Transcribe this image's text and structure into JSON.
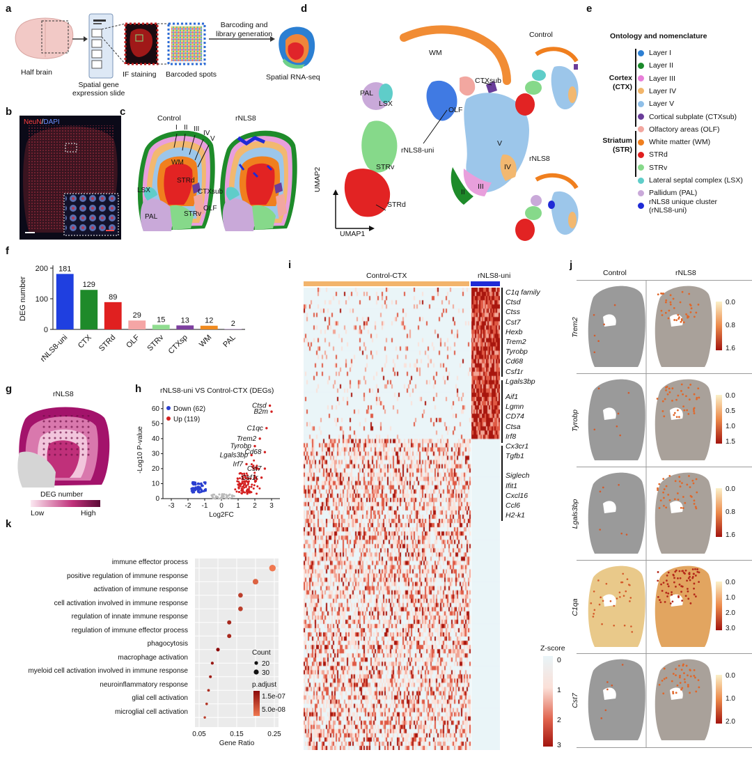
{
  "panels": {
    "a": "a",
    "b": "b",
    "c": "c",
    "d": "d",
    "e": "e",
    "f": "f",
    "g": "g",
    "h": "h",
    "i": "i",
    "j": "j",
    "k": "k"
  },
  "a": {
    "half_brain": "Half brain",
    "slide": "Spatial gene\nexpression slide",
    "if": "IF staining",
    "barcoded": "Barcoded spots",
    "arrow_label": "Barcoding and\nlibrary generation",
    "spatial": "Spatial RNA-seq"
  },
  "b": {
    "stain_red": "NeuN",
    "stain_sep": "/",
    "stain_blue": "DAPI"
  },
  "c": {
    "control": "Control",
    "rnls8": "rNLS8",
    "labels": [
      "I",
      "II",
      "III",
      "IV",
      "V",
      "WM",
      "STRd",
      "LSX",
      "CTXsub",
      "PAL",
      "STRv",
      "OLF"
    ]
  },
  "d": {
    "wm": "WM",
    "pal": "PAL",
    "lsx": "LSX",
    "ctxsub": "CTXsub",
    "olf": "OLF",
    "uni": "rNLS8-uni",
    "strv": "STRv",
    "strd": "STRd",
    "v": "V",
    "iv": "IV",
    "iii": "III",
    "ii": "II",
    "umap1": "UMAP1",
    "umap2": "UMAP2",
    "control": "Control",
    "rnls8": "rNLS8"
  },
  "e": {
    "title": "Ontology and nomenclature",
    "cortex": "Cortex\n(CTX)",
    "striatum": "Striatum\n(STR)",
    "items": [
      {
        "label": "Layer I",
        "color": "#2d7fd3"
      },
      {
        "label": "Layer II",
        "color": "#1a8a2a"
      },
      {
        "label": "Layer III",
        "color": "#e87fd9"
      },
      {
        "label": "Layer IV",
        "color": "#f2b56a"
      },
      {
        "label": "Layer V",
        "color": "#8fbfe8"
      },
      {
        "label": "Cortical subplate (CTXsub)",
        "color": "#6a3d9a"
      },
      {
        "label": "Olfactory areas (OLF)",
        "color": "#f2a7a0"
      },
      {
        "label": "White matter (WM)",
        "color": "#f07f1e"
      },
      {
        "label": "STRd",
        "color": "#e01f1f"
      },
      {
        "label": "STRv",
        "color": "#86d98a"
      },
      {
        "label": "Lateral septal complex (LSX)",
        "color": "#5fcdc9"
      },
      {
        "label": "Pallidum (PAL)",
        "color": "#c9a9d9"
      },
      {
        "label": "rNLS8 unique cluster\n(rNLS8-uni)",
        "color": "#1f2bd6"
      }
    ]
  },
  "chart_data": [
    {
      "type": "bar",
      "ylabel": "DEG number",
      "ylim": [
        0,
        200
      ],
      "yticks": [
        "0",
        "100",
        "200"
      ],
      "categories": [
        "rNLS8-uni",
        "CTX",
        "STRd",
        "OLF",
        "STRv",
        "CTXsp",
        "WM",
        "PAL"
      ],
      "values": [
        181,
        129,
        89,
        29,
        15,
        13,
        12,
        2
      ],
      "colors": [
        "#1f3fe0",
        "#1e8a2a",
        "#e02020",
        "#f5a5a5",
        "#8fdc8f",
        "#7d3f9f",
        "#f08a1e",
        "#c7a8d8"
      ]
    },
    {
      "type": "scatter",
      "title": "rNLS8-uni VS Control-CTX (DEGs)",
      "xlabel": "Log2FC",
      "ylabel": "-Log10 P-value",
      "xlim": [
        -3.5,
        3.5
      ],
      "ylim": [
        0,
        65
      ],
      "xticks": [
        "-3",
        "-2",
        "-1",
        "0",
        "1",
        "2",
        "3"
      ],
      "yticks": [
        "0",
        "10",
        "20",
        "30",
        "40",
        "50",
        "60"
      ],
      "legend": [
        {
          "name": "Down (62)",
          "color": "#2a3fd0"
        },
        {
          "name": "Up (119)",
          "color": "#d42020"
        }
      ],
      "labeled": [
        {
          "name": "Ctsd",
          "x": 2.9,
          "y": 62
        },
        {
          "name": "B2m",
          "x": 3.0,
          "y": 58
        },
        {
          "name": "C1qc",
          "x": 2.7,
          "y": 47
        },
        {
          "name": "Trem2",
          "x": 2.3,
          "y": 40
        },
        {
          "name": "Tyrobp",
          "x": 2.0,
          "y": 35
        },
        {
          "name": "Cd68",
          "x": 2.6,
          "y": 31
        },
        {
          "name": "Lgals3bp",
          "x": 1.8,
          "y": 29
        },
        {
          "name": "Irf7",
          "x": 1.5,
          "y": 23
        },
        {
          "name": "Cst7",
          "x": 2.6,
          "y": 20
        },
        {
          "name": "Csf1r",
          "x": 2.4,
          "y": 14
        }
      ]
    },
    {
      "type": "scatter",
      "subtype": "dotplot",
      "xlabel": "Gene Ratio",
      "xlim": [
        0.05,
        0.25
      ],
      "xticks": [
        "0.05",
        "0.15",
        "0.25"
      ],
      "categories": [
        "immune effector process",
        "positive regulation of immune response",
        "activation of immune response",
        "cell activation involved in immune response",
        "regulation of innate immune response",
        "regulation of immune effector process",
        "phagocytosis",
        "macrophage activation",
        "myeloid cell activation involved in immune response",
        "neuroinflammatory response",
        "glial cell activation",
        "microglial cell activation"
      ],
      "gene_ratio": [
        0.245,
        0.2,
        0.16,
        0.16,
        0.13,
        0.13,
        0.1,
        0.085,
        0.08,
        0.075,
        0.07,
        0.065
      ],
      "count": [
        38,
        32,
        25,
        25,
        22,
        22,
        18,
        14,
        13,
        12,
        11,
        10
      ],
      "p_adjust": [
        5e-09,
        1e-08,
        3e-08,
        3e-08,
        6e-08,
        6e-08,
        1.5e-07,
        1e-07,
        8e-08,
        5e-08,
        4e-08,
        3e-08
      ],
      "size_legend_title": "Count",
      "size_legend": [
        "20",
        "30"
      ],
      "color_legend_title": "p.adjust",
      "color_legend": [
        "1.5e-07",
        "5.0e-08"
      ]
    }
  ],
  "i": {
    "col_control": "Control-CTX",
    "col_uni": "rNLS8-uni",
    "scale_title": "Z-score",
    "scale_ticks": [
      "0",
      "1",
      "2",
      "3"
    ],
    "genes": [
      "C1q family",
      "Ctsd",
      "Ctss",
      "Cst7",
      "Hexb",
      "Trem2",
      "Tyrobp",
      "Cd68",
      "Csf1r",
      "Lgals3bp",
      "Aif1",
      "Lgmn",
      "CD74",
      "Ctsa",
      "Irf8",
      "Cx3cr1",
      "Tgfb1",
      "Siglech",
      "Ifit1",
      "Cxcl16",
      "Ccl6",
      "H2-k1"
    ]
  },
  "j": {
    "control": "Control",
    "rnls8": "rNLS8",
    "rows": [
      {
        "gene": "Trem2",
        "ticks": [
          "0.0",
          "0.8",
          "1.6"
        ]
      },
      {
        "gene": "Tyrobp",
        "ticks": [
          "0.0",
          "0.5",
          "1.0",
          "1.5"
        ]
      },
      {
        "gene": "Lgals3bp",
        "ticks": [
          "0.0",
          "0.8",
          "1.6"
        ]
      },
      {
        "gene": "C1qa",
        "ticks": [
          "0.0",
          "1.0",
          "2.0",
          "3.0"
        ]
      },
      {
        "gene": "Cst7",
        "ticks": [
          "0.0",
          "1.0",
          "2.0"
        ]
      }
    ]
  },
  "g": {
    "title": "rNLS8",
    "scale_title": "DEG number",
    "low": "Low",
    "high": "High"
  }
}
